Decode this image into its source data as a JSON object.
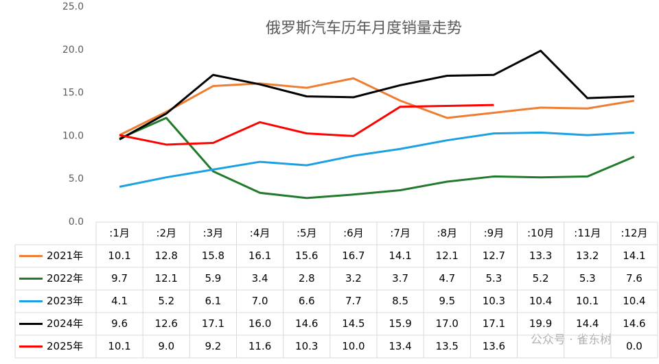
{
  "chart_data": {
    "type": "line",
    "title": "俄罗斯汽车历年月度销量走势",
    "categories": [
      ":1月",
      ":2月",
      ":3月",
      ":4月",
      ":5月",
      ":6月",
      ":7月",
      ":8月",
      ":9月",
      ":10月",
      ":11月",
      ":12月"
    ],
    "series": [
      {
        "name": "2021年",
        "color": "#ed7d31",
        "values": [
          10.1,
          12.8,
          15.8,
          16.1,
          15.6,
          16.7,
          14.1,
          12.1,
          12.7,
          13.3,
          13.2,
          14.1
        ],
        "value_labels": [
          "10.1",
          "12.8",
          "15.8",
          "16.1",
          "15.6",
          "16.7",
          "14.1",
          "12.1",
          "12.7",
          "13.3",
          "13.2",
          "14.1"
        ]
      },
      {
        "name": "2022年",
        "color": "#217a2b",
        "values": [
          9.7,
          12.1,
          5.9,
          3.4,
          2.8,
          3.2,
          3.7,
          4.7,
          5.3,
          5.2,
          5.3,
          7.6
        ],
        "value_labels": [
          "9.7",
          "12.1",
          "5.9",
          "3.4",
          "2.8",
          "3.2",
          "3.7",
          "4.7",
          "5.3",
          "5.2",
          "5.3",
          "7.6"
        ]
      },
      {
        "name": "2023年",
        "color": "#1ba1e2",
        "values": [
          4.1,
          5.2,
          6.1,
          7.0,
          6.6,
          7.7,
          8.5,
          9.5,
          10.3,
          10.4,
          10.1,
          10.4
        ],
        "value_labels": [
          "4.1",
          "5.2",
          "6.1",
          "7.0",
          "6.6",
          "7.7",
          "8.5",
          "9.5",
          "10.3",
          "10.4",
          "10.1",
          "10.4"
        ]
      },
      {
        "name": "2024年",
        "color": "#000000",
        "values": [
          9.6,
          12.6,
          17.1,
          16.0,
          14.6,
          14.5,
          15.9,
          17.0,
          17.1,
          19.9,
          14.4,
          14.6
        ],
        "value_labels": [
          "9.6",
          "12.6",
          "17.1",
          "16.0",
          "14.6",
          "14.5",
          "15.9",
          "17.0",
          "17.1",
          "19.9",
          "14.4",
          "14.6"
        ]
      },
      {
        "name": "2025年",
        "color": "#ff0000",
        "values": [
          10.1,
          9.0,
          9.2,
          11.6,
          10.3,
          10.0,
          13.4,
          13.5,
          13.6,
          null,
          null,
          0.0
        ],
        "value_labels": [
          "10.1",
          "9.0",
          "9.2",
          "11.6",
          "10.3",
          "10.0",
          "13.4",
          "13.5",
          "13.6",
          null,
          null,
          "0.0"
        ]
      }
    ],
    "ylim": [
      0,
      25
    ],
    "yticks": [
      {
        "value": 0,
        "label": "0.0"
      },
      {
        "value": 5,
        "label": "5.0"
      },
      {
        "value": 10,
        "label": "10.0"
      },
      {
        "value": 15,
        "label": "15.0"
      },
      {
        "value": 20,
        "label": "20.0"
      },
      {
        "value": 25,
        "label": "25.0"
      }
    ],
    "grid": false,
    "watermark": "公众号 · 雀东树"
  }
}
